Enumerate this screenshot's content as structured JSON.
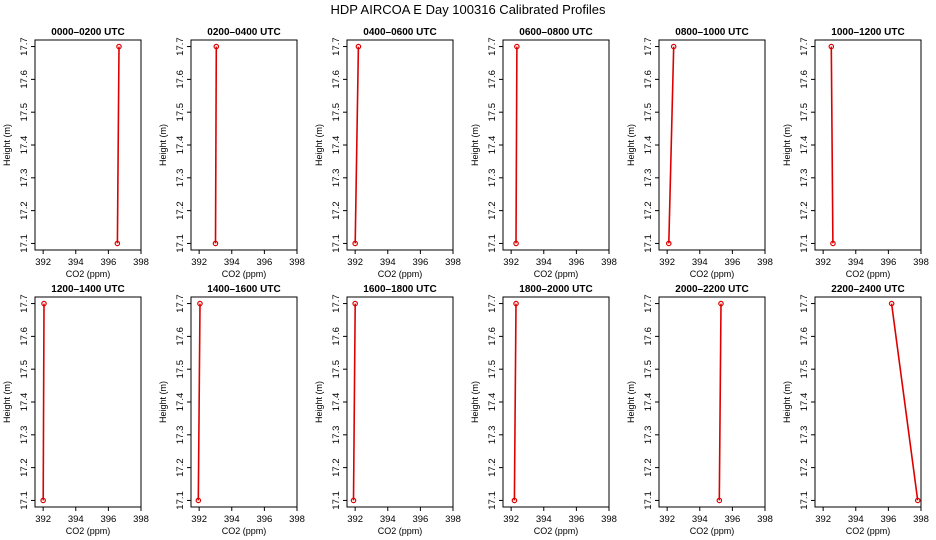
{
  "figure_title": "HDP AIRCOA E  Day 100316  Calibrated Profiles",
  "chart_data": [
    {
      "type": "line",
      "title": "0000–0200 UTC",
      "xlabel": "CO2 (ppm)",
      "ylabel": "Height (m)",
      "xlim": [
        391.5,
        398
      ],
      "ylim": [
        17.08,
        17.72
      ],
      "xticks": [
        "392",
        "394",
        "396",
        "398"
      ],
      "yticks": [
        "17.1",
        "17.2",
        "17.3",
        "17.4",
        "17.5",
        "17.6",
        "17.7"
      ],
      "series": [
        {
          "x": [
            396.55,
            396.65
          ],
          "y": [
            17.1,
            17.7
          ]
        }
      ]
    },
    {
      "type": "line",
      "title": "0200–0400 UTC",
      "xlabel": "CO2 (ppm)",
      "ylabel": "Height (m)",
      "xlim": [
        391.5,
        398
      ],
      "ylim": [
        17.08,
        17.72
      ],
      "xticks": [
        "392",
        "394",
        "396",
        "398"
      ],
      "yticks": [
        "17.1",
        "17.2",
        "17.3",
        "17.4",
        "17.5",
        "17.6",
        "17.7"
      ],
      "series": [
        {
          "x": [
            393.0,
            393.05
          ],
          "y": [
            17.1,
            17.7
          ]
        }
      ]
    },
    {
      "type": "line",
      "title": "0400–0600 UTC",
      "xlabel": "CO2 (ppm)",
      "ylabel": "Height (m)",
      "xlim": [
        391.5,
        398
      ],
      "ylim": [
        17.08,
        17.72
      ],
      "xticks": [
        "392",
        "394",
        "396",
        "398"
      ],
      "yticks": [
        "17.1",
        "17.2",
        "17.3",
        "17.4",
        "17.5",
        "17.6",
        "17.7"
      ],
      "series": [
        {
          "x": [
            392.0,
            392.2
          ],
          "y": [
            17.1,
            17.7
          ]
        }
      ]
    },
    {
      "type": "line",
      "title": "0600–0800 UTC",
      "xlabel": "CO2 (ppm)",
      "ylabel": "Height (m)",
      "xlim": [
        391.5,
        398
      ],
      "ylim": [
        17.08,
        17.72
      ],
      "xticks": [
        "392",
        "394",
        "396",
        "398"
      ],
      "yticks": [
        "17.1",
        "17.2",
        "17.3",
        "17.4",
        "17.5",
        "17.6",
        "17.7"
      ],
      "series": [
        {
          "x": [
            392.3,
            392.35
          ],
          "y": [
            17.1,
            17.7
          ]
        }
      ]
    },
    {
      "type": "line",
      "title": "0800–1000 UTC",
      "xlabel": "CO2 (ppm)",
      "ylabel": "Height (m)",
      "xlim": [
        391.5,
        398
      ],
      "ylim": [
        17.08,
        17.72
      ],
      "xticks": [
        "392",
        "394",
        "396",
        "398"
      ],
      "yticks": [
        "17.1",
        "17.2",
        "17.3",
        "17.4",
        "17.5",
        "17.6",
        "17.7"
      ],
      "series": [
        {
          "x": [
            392.1,
            392.4
          ],
          "y": [
            17.1,
            17.7
          ]
        }
      ]
    },
    {
      "type": "line",
      "title": "1000–1200 UTC",
      "xlabel": "CO2 (ppm)",
      "ylabel": "Height (m)",
      "xlim": [
        391.5,
        398
      ],
      "ylim": [
        17.08,
        17.72
      ],
      "xticks": [
        "392",
        "394",
        "396",
        "398"
      ],
      "yticks": [
        "17.1",
        "17.2",
        "17.3",
        "17.4",
        "17.5",
        "17.6",
        "17.7"
      ],
      "series": [
        {
          "x": [
            392.6,
            392.5
          ],
          "y": [
            17.1,
            17.7
          ]
        }
      ]
    },
    {
      "type": "line",
      "title": "1200–1400 UTC",
      "xlabel": "CO2 (ppm)",
      "ylabel": "Height (m)",
      "xlim": [
        391.5,
        398
      ],
      "ylim": [
        17.08,
        17.72
      ],
      "xticks": [
        "392",
        "394",
        "396",
        "398"
      ],
      "yticks": [
        "17.1",
        "17.2",
        "17.3",
        "17.4",
        "17.5",
        "17.6",
        "17.7"
      ],
      "series": [
        {
          "x": [
            392.0,
            392.05
          ],
          "y": [
            17.1,
            17.7
          ]
        }
      ]
    },
    {
      "type": "line",
      "title": "1400–1600 UTC",
      "xlabel": "CO2 (ppm)",
      "ylabel": "Height (m)",
      "xlim": [
        391.5,
        398
      ],
      "ylim": [
        17.08,
        17.72
      ],
      "xticks": [
        "392",
        "394",
        "396",
        "398"
      ],
      "yticks": [
        "17.1",
        "17.2",
        "17.3",
        "17.4",
        "17.5",
        "17.6",
        "17.7"
      ],
      "series": [
        {
          "x": [
            391.95,
            392.05
          ],
          "y": [
            17.1,
            17.7
          ]
        }
      ]
    },
    {
      "type": "line",
      "title": "1600–1800 UTC",
      "xlabel": "CO2 (ppm)",
      "ylabel": "Height (m)",
      "xlim": [
        391.5,
        398
      ],
      "ylim": [
        17.08,
        17.72
      ],
      "xticks": [
        "392",
        "394",
        "396",
        "398"
      ],
      "yticks": [
        "17.1",
        "17.2",
        "17.3",
        "17.4",
        "17.5",
        "17.6",
        "17.7"
      ],
      "series": [
        {
          "x": [
            391.9,
            392.0
          ],
          "y": [
            17.1,
            17.7
          ]
        }
      ]
    },
    {
      "type": "line",
      "title": "1800–2000 UTC",
      "xlabel": "CO2 (ppm)",
      "ylabel": "Height (m)",
      "xlim": [
        391.5,
        398
      ],
      "ylim": [
        17.08,
        17.72
      ],
      "xticks": [
        "392",
        "394",
        "396",
        "398"
      ],
      "yticks": [
        "17.1",
        "17.2",
        "17.3",
        "17.4",
        "17.5",
        "17.6",
        "17.7"
      ],
      "series": [
        {
          "x": [
            392.2,
            392.3
          ],
          "y": [
            17.1,
            17.7
          ]
        }
      ]
    },
    {
      "type": "line",
      "title": "2000–2200 UTC",
      "xlabel": "CO2 (ppm)",
      "ylabel": "Height (m)",
      "xlim": [
        391.5,
        398
      ],
      "ylim": [
        17.08,
        17.72
      ],
      "xticks": [
        "392",
        "394",
        "396",
        "398"
      ],
      "yticks": [
        "17.1",
        "17.2",
        "17.3",
        "17.4",
        "17.5",
        "17.6",
        "17.7"
      ],
      "series": [
        {
          "x": [
            395.2,
            395.3
          ],
          "y": [
            17.1,
            17.7
          ]
        }
      ]
    },
    {
      "type": "line",
      "title": "2200–2400 UTC",
      "xlabel": "CO2 (ppm)",
      "ylabel": "Height (m)",
      "xlim": [
        391.5,
        398
      ],
      "ylim": [
        17.08,
        17.72
      ],
      "xticks": [
        "392",
        "394",
        "396",
        "398"
      ],
      "yticks": [
        "17.1",
        "17.2",
        "17.3",
        "17.4",
        "17.5",
        "17.6",
        "17.7"
      ],
      "series": [
        {
          "x": [
            397.8,
            396.2
          ],
          "y": [
            17.1,
            17.7
          ]
        }
      ]
    }
  ]
}
